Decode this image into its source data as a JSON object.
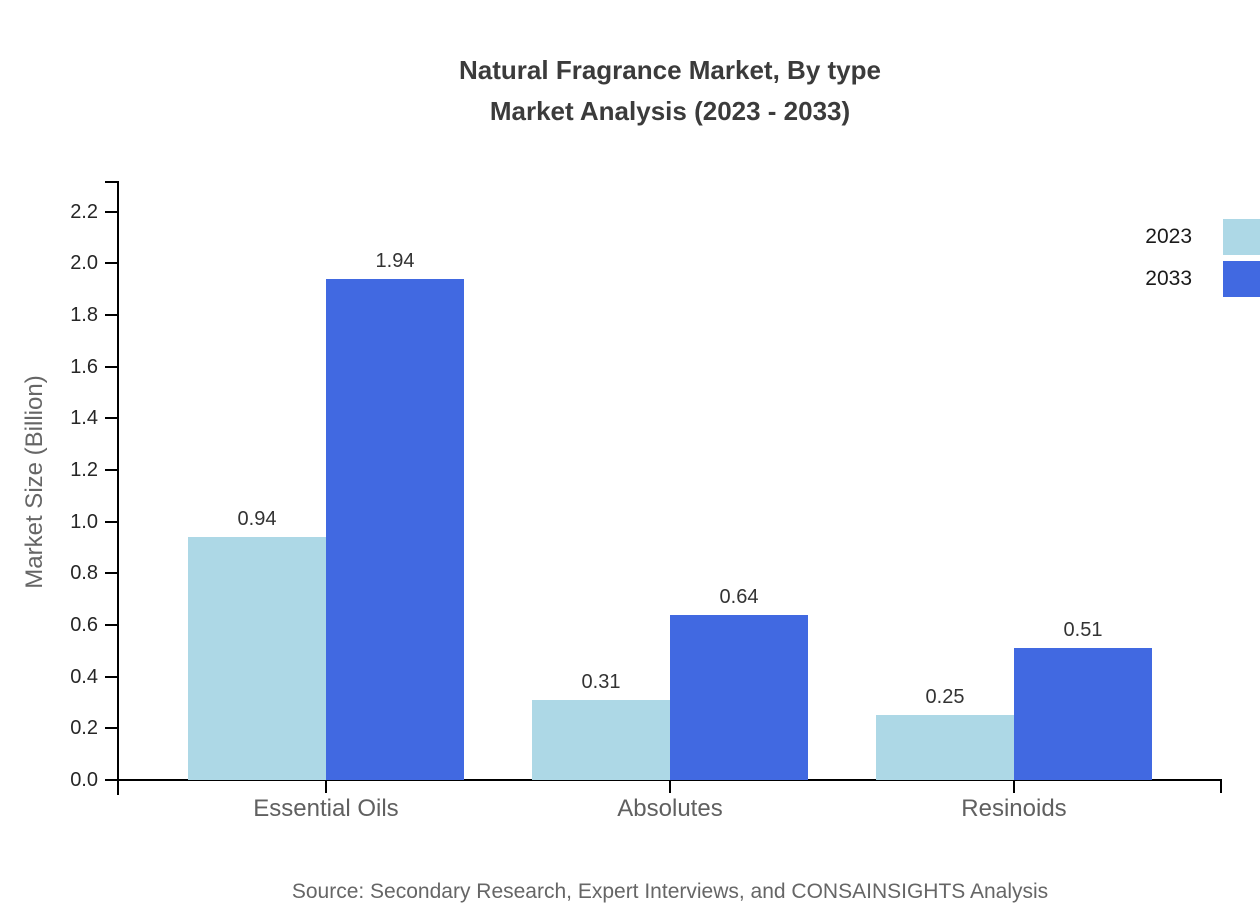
{
  "title": {
    "line1": "Natural Fragrance Market, By type",
    "line2": "Market Analysis (2023 - 2033)"
  },
  "source": "Source: Secondary Research, Expert Interviews, and CONSAINSIGHTS Analysis",
  "colors": {
    "series_2023": "#ADD8E6",
    "series_2033": "#4169E1",
    "axis": "#000000",
    "title_text": "#3b3b3b",
    "muted_text": "#666666"
  },
  "chart_data": {
    "type": "bar",
    "title": "Natural Fragrance Market, By type — Market Analysis (2023 - 2033)",
    "xlabel": "",
    "ylabel": "Market Size (Billion)",
    "categories": [
      "Essential Oils",
      "Absolutes",
      "Resinoids"
    ],
    "series": [
      {
        "name": "2023",
        "color": "#ADD8E6",
        "values": [
          0.94,
          0.31,
          0.25
        ],
        "labels": [
          "0.94",
          "0.31",
          "0.25"
        ]
      },
      {
        "name": "2033",
        "color": "#4169E1",
        "values": [
          1.94,
          0.64,
          0.51
        ],
        "labels": [
          "1.94",
          "0.64",
          "0.51"
        ]
      }
    ],
    "ylim": [
      0.0,
      2.32
    ],
    "ytick_labels": [
      "0.0",
      "0.2",
      "0.4",
      "0.6",
      "0.8",
      "1.0",
      "1.2",
      "1.4",
      "1.6",
      "1.8",
      "2.0",
      "2.2"
    ],
    "ytick_step": 0.2,
    "grid": false,
    "legend_position": "top-right"
  }
}
